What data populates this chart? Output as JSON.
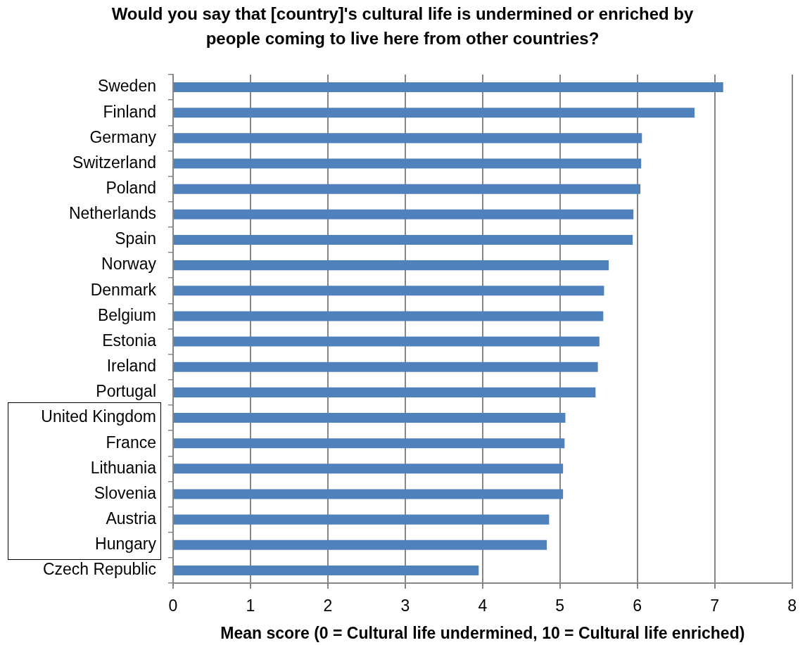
{
  "chart_data": {
    "type": "bar",
    "orientation": "horizontal",
    "title": "Would you say that [country]'s cultural life is undermined or enriched by people coming to live here from other countries?",
    "xlabel": "Mean score (0 = Cultural life undermined, 10 = Cultural life enriched)",
    "categories": [
      "Sweden",
      "Finland",
      "Germany",
      "Switzerland",
      "Poland",
      "Netherlands",
      "Spain",
      "Norway",
      "Denmark",
      "Belgium",
      "Estonia",
      "Ireland",
      "Portugal",
      "United Kingdom",
      "France",
      "Lithuania",
      "Slovenia",
      "Austria",
      "Hungary",
      "Czech Republic"
    ],
    "values": [
      7.11,
      6.74,
      6.06,
      6.05,
      6.04,
      5.95,
      5.94,
      5.63,
      5.57,
      5.56,
      5.51,
      5.49,
      5.46,
      5.07,
      5.06,
      5.04,
      5.04,
      4.86,
      4.83,
      3.95
    ],
    "color": "#4f81bd",
    "xlim": [
      0,
      8
    ],
    "xticks": [
      0,
      1,
      2,
      3,
      4,
      5,
      6,
      7,
      8
    ],
    "grid": "x"
  }
}
